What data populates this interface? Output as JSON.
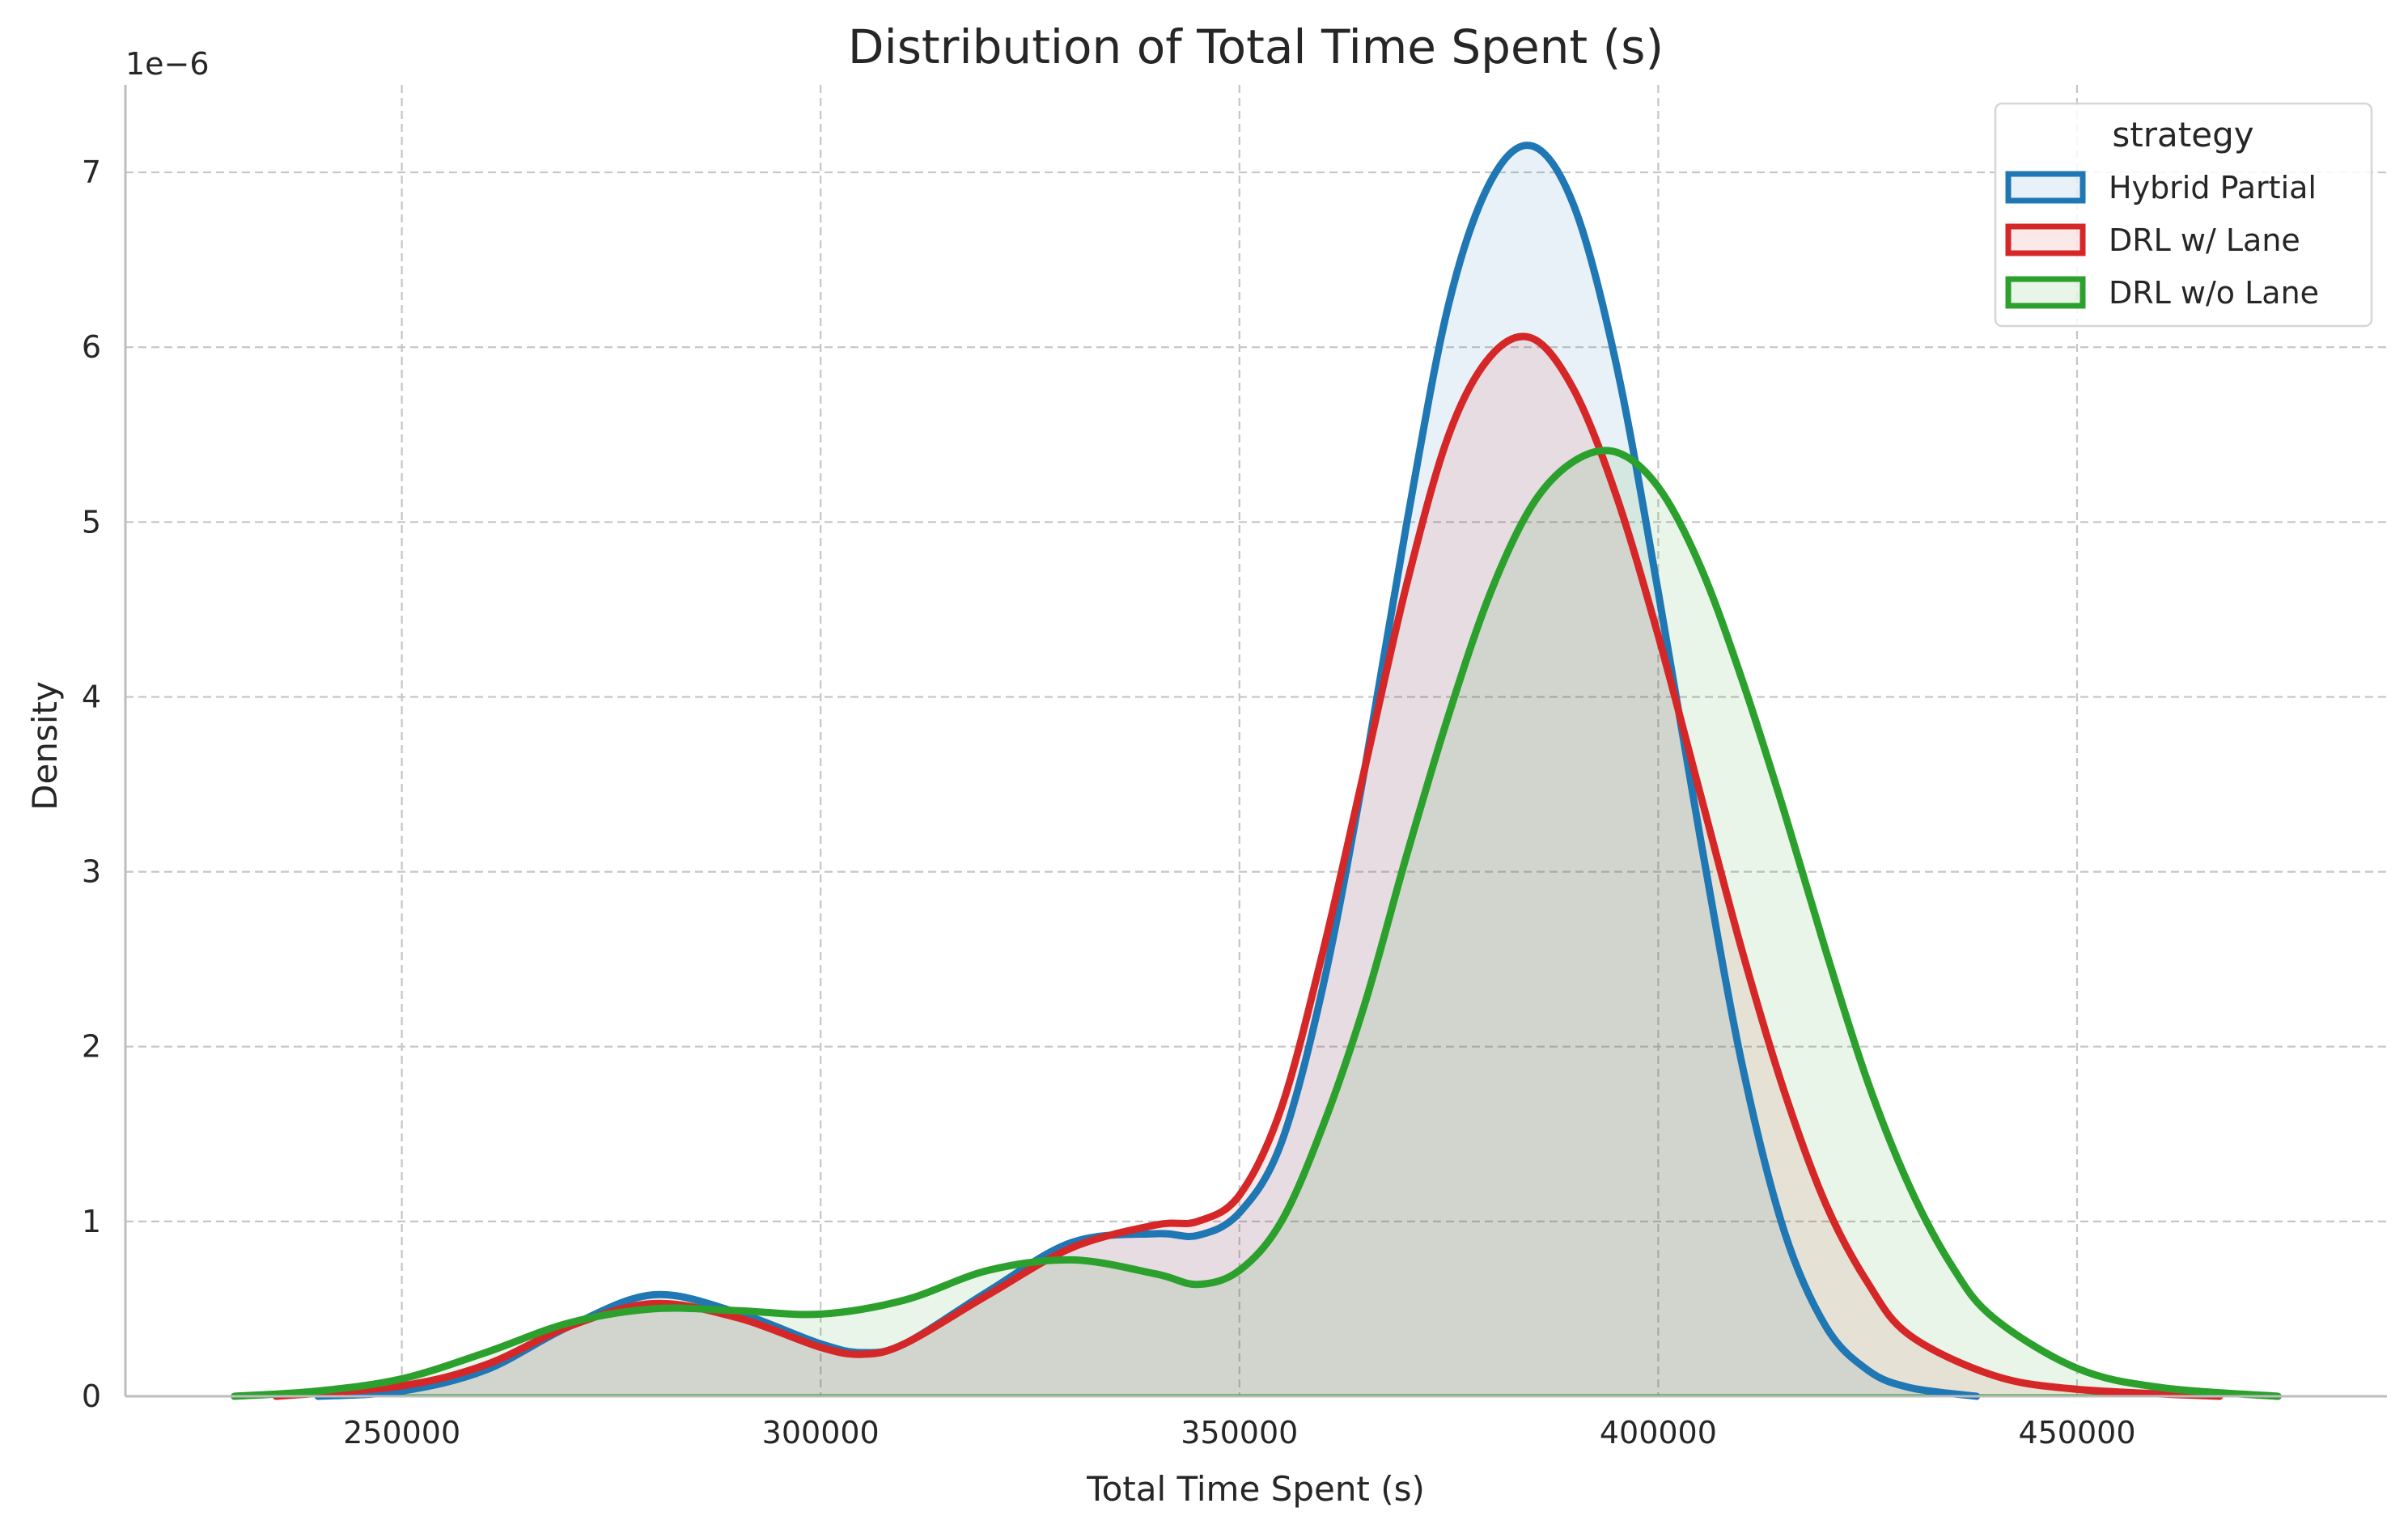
{
  "chart_data": {
    "type": "area",
    "title": "Distribution of Total Time Spent (s)",
    "xlabel": "Total Time Spent (s)",
    "ylabel": "Density",
    "y_offset_label": "1e−6",
    "xlim": [
      217000,
      487000
    ],
    "ylim": [
      0,
      7.5
    ],
    "x_ticks": [
      250000,
      300000,
      350000,
      400000,
      450000
    ],
    "x_tick_labels": [
      "250000",
      "300000",
      "350000",
      "400000",
      "450000"
    ],
    "y_ticks": [
      0,
      1,
      2,
      3,
      4,
      5,
      6,
      7
    ],
    "y_tick_labels": [
      "0",
      "1",
      "2",
      "3",
      "4",
      "5",
      "6",
      "7"
    ],
    "grid": true,
    "legend": {
      "title": "strategy",
      "placement": "top-right"
    },
    "series": [
      {
        "name": "Hybrid Partial",
        "color": "#1f77b4",
        "fill": "rgba(31,119,180,0.10)",
        "points": [
          [
            240000,
            0.0
          ],
          [
            250000,
            0.03
          ],
          [
            260000,
            0.15
          ],
          [
            270000,
            0.4
          ],
          [
            280000,
            0.58
          ],
          [
            290000,
            0.48
          ],
          [
            300000,
            0.3
          ],
          [
            305000,
            0.25
          ],
          [
            310000,
            0.3
          ],
          [
            320000,
            0.6
          ],
          [
            330000,
            0.88
          ],
          [
            340000,
            0.93
          ],
          [
            345000,
            0.92
          ],
          [
            350000,
            1.05
          ],
          [
            355000,
            1.45
          ],
          [
            360000,
            2.35
          ],
          [
            365000,
            3.6
          ],
          [
            370000,
            5.0
          ],
          [
            375000,
            6.25
          ],
          [
            380000,
            6.95
          ],
          [
            385000,
            7.15
          ],
          [
            390000,
            6.8
          ],
          [
            395000,
            5.9
          ],
          [
            400000,
            4.6
          ],
          [
            405000,
            3.2
          ],
          [
            410000,
            1.9
          ],
          [
            415000,
            0.95
          ],
          [
            420000,
            0.4
          ],
          [
            425000,
            0.15
          ],
          [
            430000,
            0.05
          ],
          [
            438000,
            0.0
          ]
        ]
      },
      {
        "name": "DRL w/ Lane",
        "color": "#d62728",
        "fill": "rgba(214,39,40,0.10)",
        "points": [
          [
            235000,
            0.0
          ],
          [
            250000,
            0.06
          ],
          [
            260000,
            0.18
          ],
          [
            270000,
            0.4
          ],
          [
            280000,
            0.53
          ],
          [
            290000,
            0.45
          ],
          [
            300000,
            0.28
          ],
          [
            305000,
            0.24
          ],
          [
            310000,
            0.3
          ],
          [
            320000,
            0.58
          ],
          [
            330000,
            0.85
          ],
          [
            340000,
            0.98
          ],
          [
            345000,
            1.0
          ],
          [
            350000,
            1.15
          ],
          [
            355000,
            1.65
          ],
          [
            360000,
            2.55
          ],
          [
            365000,
            3.6
          ],
          [
            370000,
            4.65
          ],
          [
            375000,
            5.5
          ],
          [
            380000,
            5.95
          ],
          [
            385000,
            6.05
          ],
          [
            390000,
            5.75
          ],
          [
            395000,
            5.15
          ],
          [
            400000,
            4.35
          ],
          [
            405000,
            3.45
          ],
          [
            410000,
            2.55
          ],
          [
            415000,
            1.75
          ],
          [
            420000,
            1.1
          ],
          [
            425000,
            0.65
          ],
          [
            430000,
            0.35
          ],
          [
            440000,
            0.12
          ],
          [
            450000,
            0.04
          ],
          [
            467000,
            0.0
          ]
        ]
      },
      {
        "name": "DRL w/o Lane",
        "color": "#2ca02c",
        "fill": "rgba(44,160,44,0.10)",
        "points": [
          [
            230000,
            0.0
          ],
          [
            240000,
            0.03
          ],
          [
            250000,
            0.1
          ],
          [
            260000,
            0.25
          ],
          [
            270000,
            0.42
          ],
          [
            280000,
            0.5
          ],
          [
            290000,
            0.49
          ],
          [
            300000,
            0.47
          ],
          [
            310000,
            0.55
          ],
          [
            320000,
            0.72
          ],
          [
            330000,
            0.78
          ],
          [
            340000,
            0.7
          ],
          [
            345000,
            0.64
          ],
          [
            350000,
            0.72
          ],
          [
            355000,
            1.0
          ],
          [
            360000,
            1.55
          ],
          [
            365000,
            2.25
          ],
          [
            370000,
            3.1
          ],
          [
            375000,
            3.9
          ],
          [
            380000,
            4.6
          ],
          [
            385000,
            5.1
          ],
          [
            390000,
            5.35
          ],
          [
            395000,
            5.4
          ],
          [
            400000,
            5.2
          ],
          [
            405000,
            4.75
          ],
          [
            410000,
            4.1
          ],
          [
            415000,
            3.35
          ],
          [
            420000,
            2.55
          ],
          [
            425000,
            1.8
          ],
          [
            430000,
            1.2
          ],
          [
            435000,
            0.75
          ],
          [
            440000,
            0.45
          ],
          [
            450000,
            0.16
          ],
          [
            460000,
            0.05
          ],
          [
            474000,
            0.0
          ]
        ]
      }
    ]
  }
}
